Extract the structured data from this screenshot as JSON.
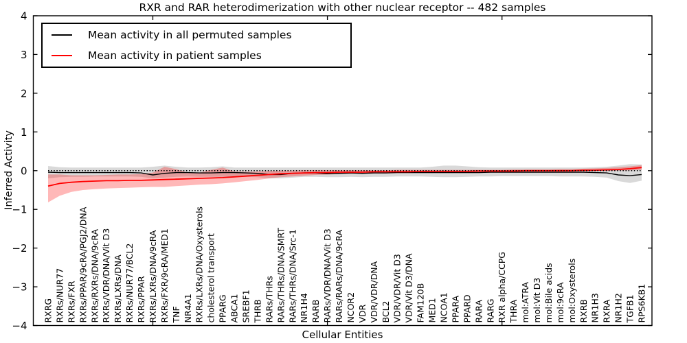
{
  "figure": {
    "title": "RXR and RAR heterodimerization with other nuclear receptor -- 482 samples",
    "xlabel": "Cellular Entities",
    "ylabel": "Inferred Activity"
  },
  "legend": {
    "items": [
      {
        "label": "Mean activity in all permuted samples",
        "color": "#000000"
      },
      {
        "label": "Mean activity in patient samples",
        "color": "#ff0000"
      }
    ],
    "position": "upper left"
  },
  "axes": {
    "ylim": [
      -4,
      4
    ],
    "yticks": [
      4,
      3,
      2,
      1,
      0,
      -1,
      -2,
      -3,
      -4
    ],
    "x_major_tick_indices": [
      9,
      24,
      39
    ],
    "grid": false
  },
  "chart_data": {
    "type": "line",
    "title": "RXR and RAR heterodimerization with other nuclear receptor -- 482 samples",
    "xlabel": "Cellular Entities",
    "ylabel": "Inferred Activity",
    "ylim": [
      -4,
      4
    ],
    "legend_position": "upper left",
    "reference_line": {
      "y": 0,
      "style": "dotted",
      "color": "#000000"
    },
    "categories": [
      "RXRG",
      "RXRs/NUR77",
      "RXRs/FXR",
      "RXRs/PPAR/9cRA/PGJ2/DNA",
      "RXRs/RXRs/DNA/9cRA",
      "RXRs/VDR/DNA/Vit D3",
      "RXRs/LXRs/DNA",
      "RXRs/NUR77/BCL2",
      "RXRs/PPAR",
      "RXRs/LXRs/DNA/9cRA",
      "RXRs/FXR/9cRA/MED1",
      "TNF",
      "NR4A1",
      "RXRs/LXRs/DNA/Oxysterols",
      "cholesterol transport",
      "PPARG",
      "ABCA1",
      "SREBF1",
      "THRB",
      "RARs/THRs",
      "RARs/THRs/DNA/SMRT",
      "RARs/THRs/DNA/Src-1",
      "NR1H4",
      "RARB",
      "RARs/VDR/DNA/Vit D3",
      "RARs/RARs/DNA/9cRA",
      "NCOR2",
      "VDR",
      "VDR/VDR/DNA",
      "BCL2",
      "VDR/VDR/Vit D3",
      "VDR/Vit D3/DNA",
      "FAM120B",
      "MED1",
      "NCOA1",
      "PPARA",
      "PPARD",
      "RARA",
      "RARG",
      "RXR alpha/CCPG",
      "THRA",
      "mol:ATRA",
      "mol:Vit D3",
      "mol:Bile acids",
      "mol:9cRA",
      "mol:Oxysterols",
      "RXRB",
      "NR1H3",
      "RXRA",
      "NR1H2",
      "TGFB1",
      "RPS6KB1"
    ],
    "series": [
      {
        "name": "Mean activity in all permuted samples",
        "color": "#000000",
        "band_color": "rgba(0,0,0,0.15)",
        "values": [
          -0.04,
          -0.05,
          -0.05,
          -0.05,
          -0.05,
          -0.05,
          -0.05,
          -0.05,
          -0.06,
          -0.11,
          -0.07,
          -0.05,
          -0.05,
          -0.06,
          -0.06,
          -0.05,
          -0.05,
          -0.06,
          -0.07,
          -0.1,
          -0.1,
          -0.07,
          -0.06,
          -0.06,
          -0.08,
          -0.07,
          -0.06,
          -0.07,
          -0.06,
          -0.06,
          -0.05,
          -0.05,
          -0.05,
          -0.05,
          -0.05,
          -0.05,
          -0.05,
          -0.05,
          -0.04,
          -0.04,
          -0.04,
          -0.04,
          -0.04,
          -0.04,
          -0.04,
          -0.04,
          -0.04,
          -0.05,
          -0.06,
          -0.11,
          -0.13,
          -0.1
        ],
        "band_upper": [
          0.12,
          0.09,
          0.08,
          0.08,
          0.08,
          0.08,
          0.08,
          0.08,
          0.08,
          0.1,
          0.13,
          0.1,
          0.08,
          0.08,
          0.09,
          0.11,
          0.08,
          0.08,
          0.08,
          0.08,
          0.08,
          0.08,
          0.08,
          0.08,
          0.08,
          0.08,
          0.08,
          0.08,
          0.08,
          0.08,
          0.08,
          0.08,
          0.08,
          0.1,
          0.13,
          0.13,
          0.11,
          0.09,
          0.08,
          0.08,
          0.08,
          0.08,
          0.08,
          0.08,
          0.08,
          0.08,
          0.08,
          0.09,
          0.1,
          0.13,
          0.17,
          0.16
        ],
        "band_lower": [
          -0.2,
          -0.17,
          -0.16,
          -0.16,
          -0.15,
          -0.15,
          -0.15,
          -0.15,
          -0.16,
          -0.2,
          -0.18,
          -0.16,
          -0.15,
          -0.16,
          -0.16,
          -0.16,
          -0.15,
          -0.16,
          -0.17,
          -0.2,
          -0.2,
          -0.18,
          -0.16,
          -0.16,
          -0.17,
          -0.17,
          -0.16,
          -0.17,
          -0.16,
          -0.16,
          -0.15,
          -0.15,
          -0.15,
          -0.16,
          -0.17,
          -0.17,
          -0.16,
          -0.15,
          -0.15,
          -0.14,
          -0.14,
          -0.14,
          -0.14,
          -0.14,
          -0.15,
          -0.15,
          -0.15,
          -0.16,
          -0.18,
          -0.27,
          -0.32,
          -0.26
        ]
      },
      {
        "name": "Mean activity in patient samples",
        "color": "#ff0000",
        "band_color": "rgba(255,0,0,0.28)",
        "values": [
          -0.4,
          -0.33,
          -0.3,
          -0.28,
          -0.27,
          -0.26,
          -0.26,
          -0.25,
          -0.25,
          -0.24,
          -0.23,
          -0.22,
          -0.21,
          -0.2,
          -0.19,
          -0.18,
          -0.16,
          -0.14,
          -0.12,
          -0.1,
          -0.08,
          -0.07,
          -0.06,
          -0.05,
          -0.05,
          -0.04,
          -0.04,
          -0.04,
          -0.03,
          -0.03,
          -0.03,
          -0.03,
          -0.02,
          -0.02,
          -0.02,
          -0.02,
          -0.02,
          -0.01,
          -0.01,
          -0.01,
          -0.01,
          0.0,
          0.0,
          0.0,
          0.0,
          0.0,
          0.01,
          0.01,
          0.02,
          0.03,
          0.05,
          0.08
        ],
        "band_upper": [
          -0.1,
          -0.1,
          -0.12,
          -0.12,
          -0.12,
          -0.11,
          -0.1,
          -0.1,
          -0.09,
          -0.05,
          0.1,
          0.04,
          -0.05,
          -0.05,
          0.02,
          0.08,
          -0.02,
          -0.03,
          -0.02,
          -0.01,
          0.0,
          0.0,
          0.01,
          0.01,
          0.01,
          0.01,
          0.01,
          0.01,
          0.01,
          0.01,
          0.02,
          0.02,
          0.02,
          0.02,
          0.02,
          0.02,
          0.02,
          0.02,
          0.02,
          0.02,
          0.03,
          0.03,
          0.03,
          0.03,
          0.04,
          0.04,
          0.05,
          0.06,
          0.07,
          0.09,
          0.11,
          0.14
        ],
        "band_lower": [
          -0.82,
          -0.65,
          -0.55,
          -0.5,
          -0.48,
          -0.46,
          -0.45,
          -0.44,
          -0.43,
          -0.42,
          -0.42,
          -0.4,
          -0.38,
          -0.36,
          -0.35,
          -0.33,
          -0.3,
          -0.27,
          -0.24,
          -0.2,
          -0.17,
          -0.15,
          -0.13,
          -0.11,
          -0.1,
          -0.09,
          -0.08,
          -0.08,
          -0.07,
          -0.07,
          -0.06,
          -0.06,
          -0.05,
          -0.05,
          -0.05,
          -0.04,
          -0.04,
          -0.04,
          -0.03,
          -0.03,
          -0.03,
          -0.02,
          -0.02,
          -0.02,
          -0.02,
          -0.01,
          -0.01,
          0.0,
          0.0,
          0.0,
          0.01,
          0.02
        ]
      }
    ]
  }
}
